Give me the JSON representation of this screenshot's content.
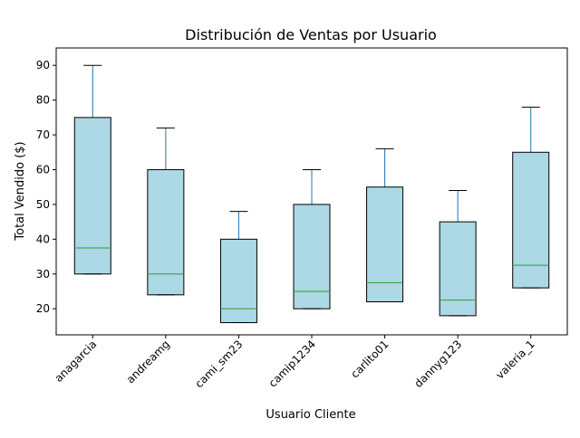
{
  "chart_data": {
    "type": "box",
    "title": "Distribución de Ventas por Usuario",
    "xlabel": "Usuario Cliente",
    "ylabel": "Total Vendido ($)",
    "ylim": [
      12.5,
      95
    ],
    "yticks": [
      20,
      30,
      40,
      50,
      60,
      70,
      80,
      90
    ],
    "grid": false,
    "categories": [
      "anagarcia",
      "andreamg",
      "cami_sm23",
      "camip1234",
      "carlito01",
      "dannyg123",
      "valeria_1"
    ],
    "boxes": [
      {
        "category": "anagarcia",
        "whisker_low": 30,
        "q1": 30,
        "median": 37.5,
        "q3": 75,
        "whisker_high": 90
      },
      {
        "category": "andreamg",
        "whisker_low": 24,
        "q1": 24,
        "median": 30,
        "q3": 60,
        "whisker_high": 72
      },
      {
        "category": "cami_sm23",
        "whisker_low": 16,
        "q1": 16,
        "median": 20,
        "q3": 40,
        "whisker_high": 48
      },
      {
        "category": "camip1234",
        "whisker_low": 20,
        "q1": 20,
        "median": 25,
        "q3": 50,
        "whisker_high": 60
      },
      {
        "category": "carlito01",
        "whisker_low": 22,
        "q1": 22,
        "median": 27.5,
        "q3": 55,
        "whisker_high": 66
      },
      {
        "category": "dannyg123",
        "whisker_low": 18,
        "q1": 18,
        "median": 22.5,
        "q3": 45,
        "whisker_high": 54
      },
      {
        "category": "valeria_1",
        "whisker_low": 26,
        "q1": 26,
        "median": 32.5,
        "q3": 65,
        "whisker_high": 78
      }
    ],
    "colors": {
      "box_fill": "#add8e6",
      "box_edge": "#000000",
      "whisker": "#1f77b4",
      "median": "#2ca02c",
      "axes": "#000000"
    }
  }
}
